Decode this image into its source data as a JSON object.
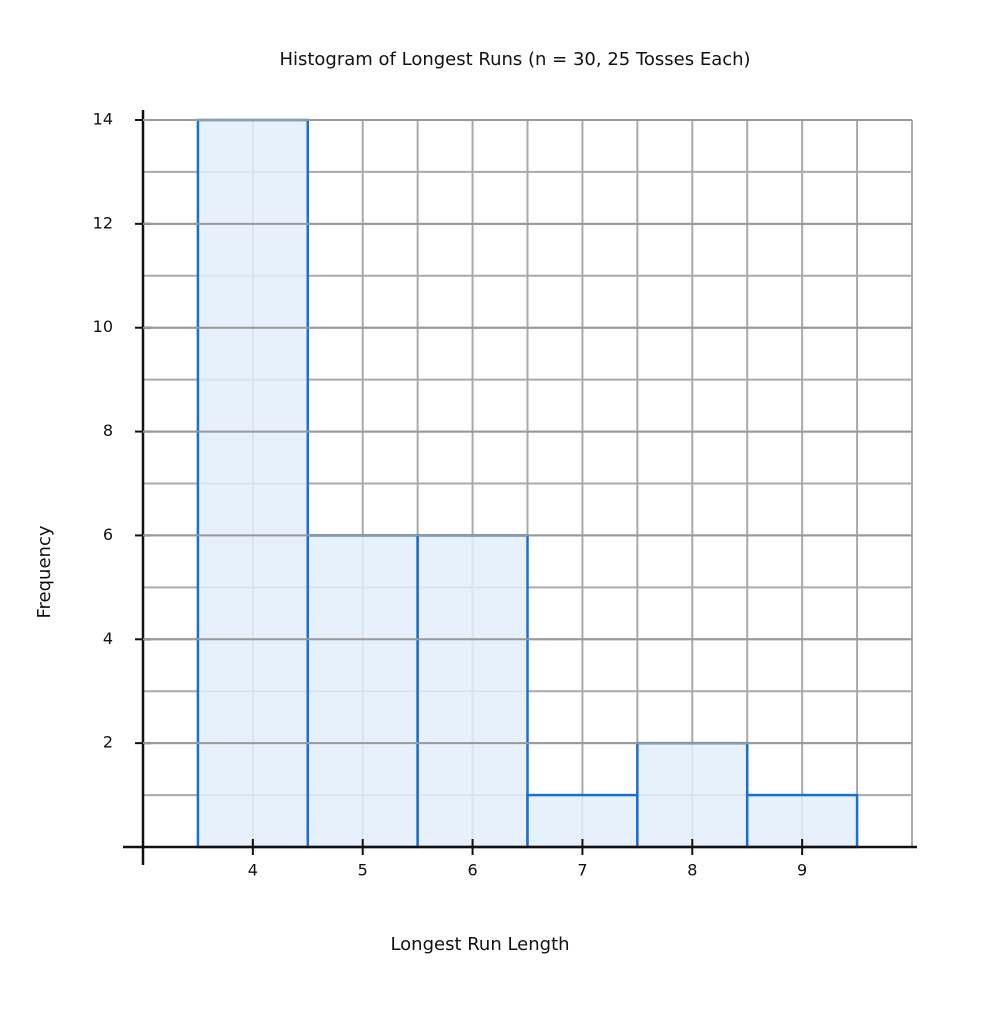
{
  "chart_data": {
    "type": "histogram",
    "title": "Histogram of Longest Runs (n = 30, 25 Tosses Each)",
    "x_label": "Longest Run Length",
    "y_label": "Frequency",
    "bins": [
      3.5,
      4.5,
      5.5,
      6.5,
      7.5,
      8.5,
      9.5
    ],
    "values": [
      14,
      6,
      6,
      1,
      2,
      1
    ],
    "color": "#1a6fd0",
    "fill": "#e3eefa",
    "xlim": [
      3,
      10
    ],
    "xticks": [
      4,
      5,
      6,
      7,
      8,
      9
    ],
    "ylim": [
      0,
      14
    ],
    "yticks": [
      2,
      4,
      6,
      8,
      10,
      12,
      14
    ],
    "grid": true
  }
}
